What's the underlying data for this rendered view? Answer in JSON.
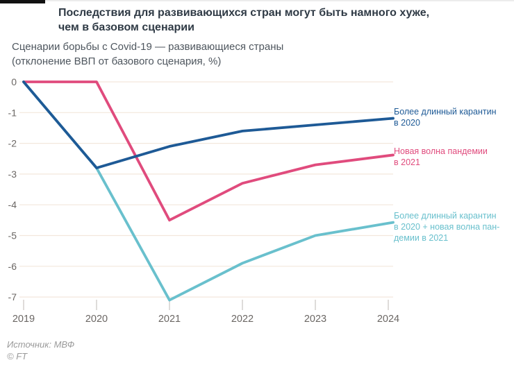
{
  "header": {
    "title": "Последствия для развивающихся стран могут быть намного хуже,\nчем в базовом сценарии",
    "subtitle_line1": "Сценарии борьбы с Covid-19 — развивающиеся страны",
    "subtitle_line2": "(отклонение ВВП от базового сценария, %)"
  },
  "footer": {
    "source": "Источник: МВФ",
    "copyright": "© FT"
  },
  "colors": {
    "grid": "#f3e7dc",
    "tick": "#c9c5c2",
    "axis_text": "#6b6764"
  },
  "chart_data": {
    "type": "line",
    "title": "Сценарии борьбы с Covid-19 — развивающиеся страны",
    "ylabel": "отклонение ВВП от базового сценария, %",
    "x": [
      2019,
      2020,
      2021,
      2022,
      2023,
      2024
    ],
    "ylim": [
      -7.3,
      0.3
    ],
    "yticks": [
      0,
      -1,
      -2,
      -3,
      -4,
      -5,
      -6,
      -7
    ],
    "grid": true,
    "legend_position": "right",
    "series": [
      {
        "name": "Более длинный карантин в 2020",
        "legend_label": "Более длинный карантин\nв 2020",
        "color": "#1e5a96",
        "values": [
          0,
          -2.8,
          -2.1,
          -1.6,
          -1.4,
          -1.2
        ]
      },
      {
        "name": "Новая волна пандемии в 2021",
        "legend_label": "Новая волна пандемии\nв 2021",
        "color": "#e04b7d",
        "values": [
          0,
          0,
          -4.5,
          -3.3,
          -2.7,
          -2.4
        ]
      },
      {
        "name": "Более длинный карантин в 2020 + новая волна пандемии в 2021",
        "legend_label": "Более длинный карантин\nв 2020 + новая волна пан-\nдемии в 2021",
        "color": "#69c0cd",
        "values": [
          0,
          -2.8,
          -7.1,
          -5.9,
          -5.0,
          -4.6
        ]
      }
    ]
  }
}
